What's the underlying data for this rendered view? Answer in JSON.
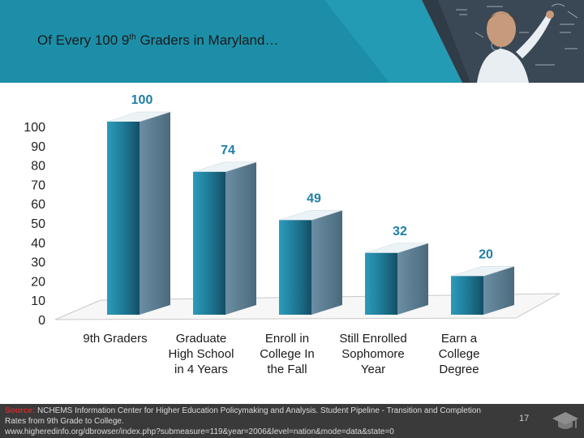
{
  "slide": {
    "title_pre": "Of Every 100 9",
    "title_sup": "th",
    "title_post": " Graders in Maryland…",
    "page_number": "17"
  },
  "source": {
    "label": "Source:",
    "text": " NCHEMS Information Center for Higher Education Policymaking and Analysis. Student Pipeline - Transition and Completion Rates from 9th Grade to College.",
    "url": "www.higheredinfo.org/dbrowser/index.php?submeasure=119&year=2006&level=nation&mode=data&state=0"
  },
  "colors": {
    "header": "#1d8ea8",
    "bar_front": "#1f7a96",
    "bar_side": "#5e7f94",
    "label": "#1f7ea6",
    "footer": "#3a3a3a",
    "source_label": "#cf2a2a"
  },
  "chart_data": {
    "type": "bar",
    "style": "3d",
    "categories": [
      [
        "9th Graders"
      ],
      [
        "Graduate",
        "High School",
        "in 4 Years"
      ],
      [
        "Enroll in",
        "College In",
        "the Fall"
      ],
      [
        "Still Enrolled",
        "Sophomore",
        "Year"
      ],
      [
        "Earn a",
        "College",
        "Degree"
      ]
    ],
    "values": [
      100,
      74,
      49,
      32,
      20
    ],
    "value_labels": [
      "100",
      "74",
      "49",
      "32",
      "20"
    ],
    "ylim": [
      0,
      100
    ],
    "yticks": [
      0,
      10,
      20,
      30,
      40,
      50,
      60,
      70,
      80,
      90,
      100
    ],
    "grid": false,
    "legend": "none"
  }
}
